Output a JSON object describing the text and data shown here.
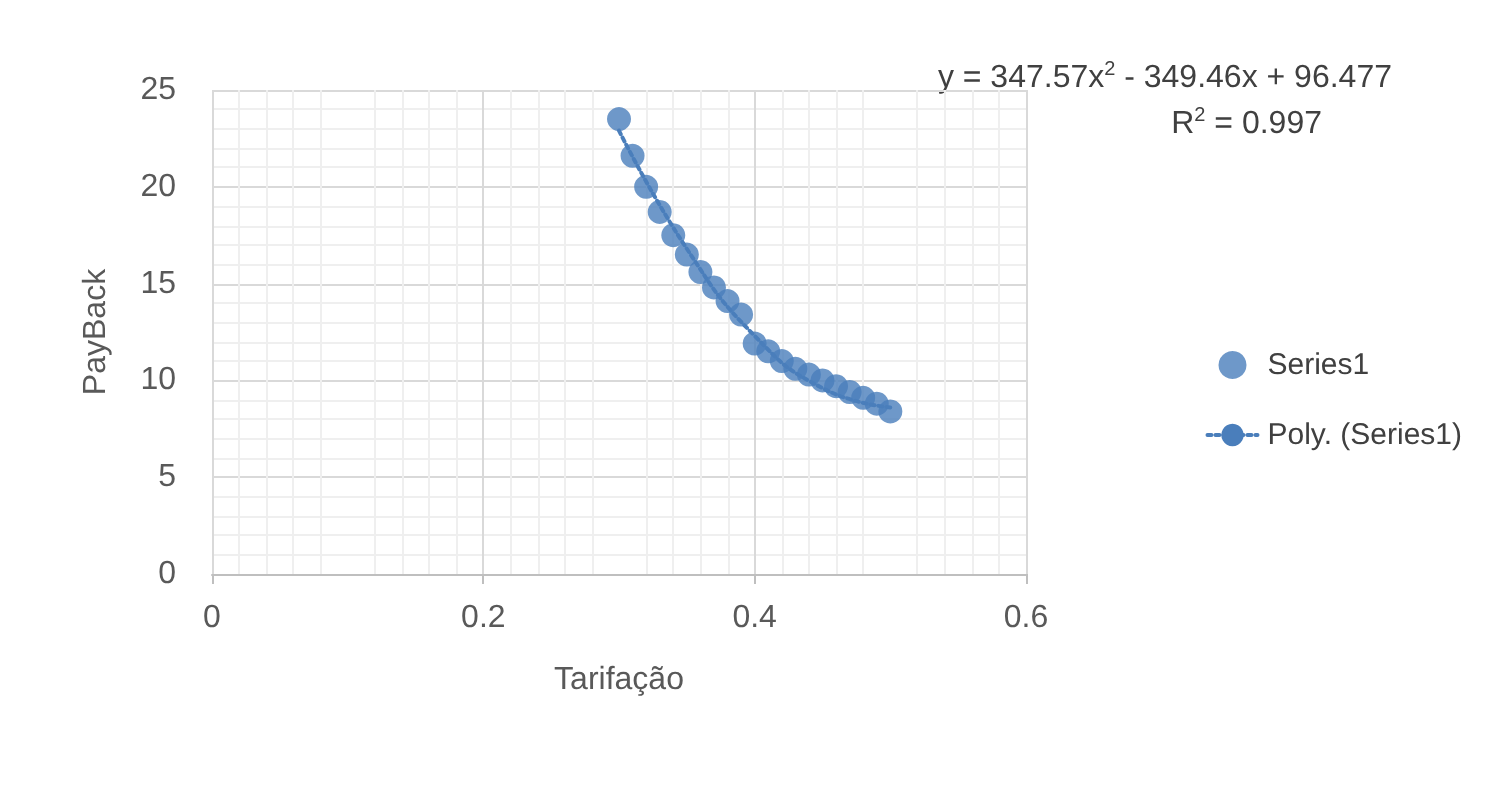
{
  "chart_data": {
    "type": "scatter",
    "xlabel": "Tarifação",
    "ylabel": "PayBack",
    "xlim": [
      0,
      0.6
    ],
    "xticks": [
      0,
      0.2,
      0.4,
      0.6
    ],
    "ylim": [
      0,
      25
    ],
    "yticks": [
      0,
      5,
      10,
      15,
      20,
      25
    ],
    "grid": true,
    "legend": "right",
    "marker": "circle",
    "annotations": [
      "y = 347.57x$^{2}$ - 349.46x + 96.477",
      "R$^{2}$ = 0.997"
    ],
    "series": [
      {
        "name": "Series1",
        "color": "#4a7ebb",
        "x": [
          0.3,
          0.31,
          0.32,
          0.33,
          0.34,
          0.35,
          0.36,
          0.37,
          0.38,
          0.39,
          0.4,
          0.41,
          0.42,
          0.43,
          0.44,
          0.45,
          0.46,
          0.47,
          0.48,
          0.49,
          0.5
        ],
        "values": [
          23.5,
          21.6,
          20.0,
          18.7,
          17.5,
          16.5,
          15.6,
          14.8,
          14.1,
          13.4,
          11.9,
          11.5,
          11.0,
          10.6,
          10.3,
          10.0,
          9.7,
          9.4,
          9.1,
          8.8,
          8.4
        ]
      },
      {
        "name": "Poly. (Series1)",
        "type": "line",
        "color": "#4a7ebb",
        "line_style": "dotted",
        "marker": "none",
        "x": [
          0.3,
          0.35,
          0.4,
          0.45,
          0.5
        ],
        "values": [
          22.9,
          16.8,
          12.3,
          9.6,
          8.6
        ]
      }
    ]
  }
}
